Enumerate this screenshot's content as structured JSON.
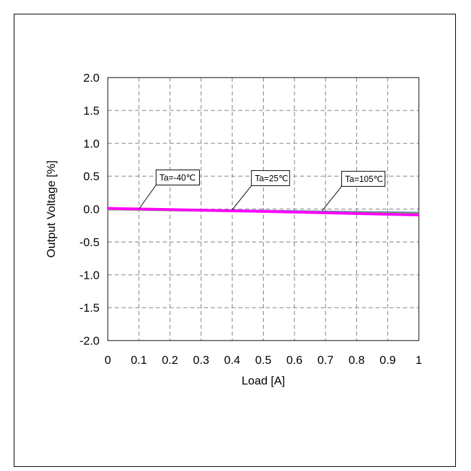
{
  "chart_data": {
    "type": "line",
    "title": "",
    "xlabel": "Load [A]",
    "ylabel": "Output Voltage [%]",
    "xlim": [
      0,
      1
    ],
    "ylim": [
      -2.0,
      2.0
    ],
    "xticks": [
      0,
      0.1,
      0.2,
      0.3,
      0.4,
      0.5,
      0.6,
      0.7,
      0.8,
      0.9,
      1
    ],
    "xtick_labels": [
      "0",
      "0.1",
      "0.2",
      "0.3",
      "0.4",
      "0.5",
      "0.6",
      "0.7",
      "0.8",
      "0.9",
      "1"
    ],
    "yticks": [
      2.0,
      1.5,
      1.0,
      0.5,
      0.0,
      -0.5,
      -1.0,
      -1.5,
      -2.0
    ],
    "ytick_labels": [
      "2.0",
      "1.5",
      "1.0",
      "0.5",
      "0.0",
      "-0.5",
      "-1.0",
      "-1.5",
      "-2.0"
    ],
    "grid": true,
    "grid_style": "dashed",
    "series": [
      {
        "color": "#4472C4",
        "x": [
          0,
          0.5,
          1
        ],
        "y": [
          0.0,
          -0.03,
          -0.06
        ]
      },
      {
        "color": "#70AD47",
        "x": [
          0,
          0.5,
          1
        ],
        "y": [
          0.0,
          -0.035,
          -0.07
        ]
      },
      {
        "color": "#FF00FF",
        "x": [
          0,
          0.5,
          1
        ],
        "y": [
          0.01,
          -0.035,
          -0.09
        ]
      }
    ],
    "annotations": [
      {
        "text": "Ta=-40℃",
        "x": 0.1,
        "y": 0.0
      },
      {
        "text": "Ta=25℃",
        "x": 0.4,
        "y": -0.01
      },
      {
        "text": "Ta=105℃",
        "x": 0.69,
        "y": -0.02
      }
    ]
  }
}
